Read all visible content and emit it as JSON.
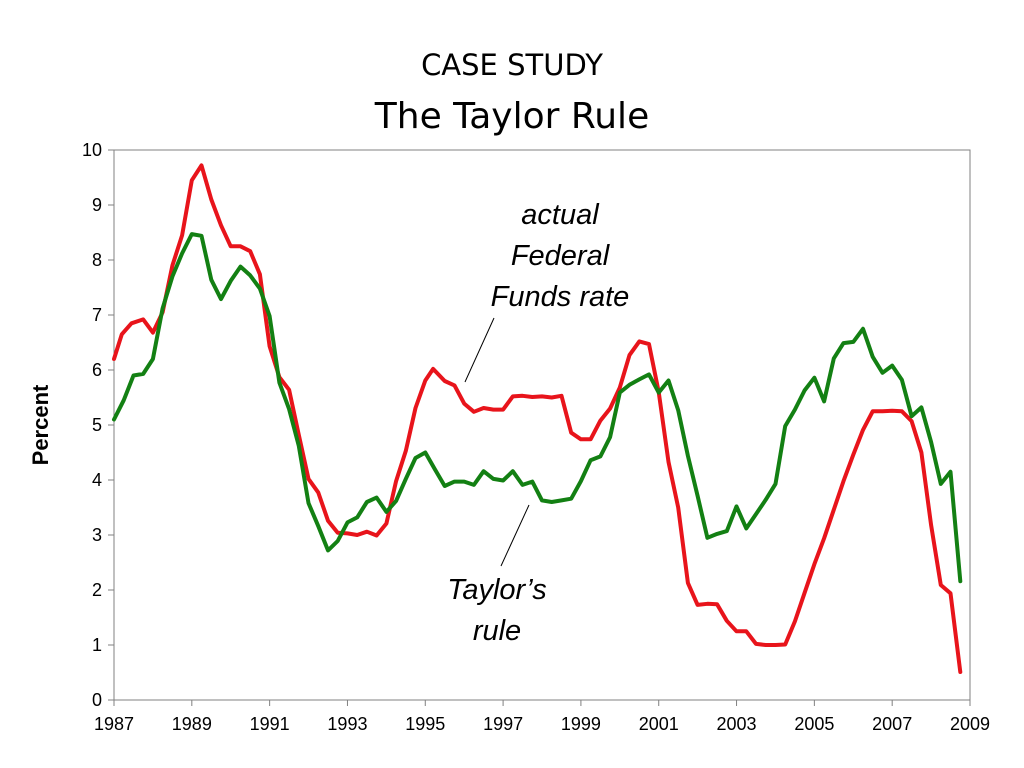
{
  "slide": {
    "title_line1": "CASE STUDY",
    "title_line2": "The Taylor Rule"
  },
  "chart_data": {
    "type": "line",
    "ylabel": "Percent",
    "xlabel": "",
    "xlim": [
      1987,
      2009
    ],
    "ylim": [
      0,
      10
    ],
    "x_ticks": [
      "1987",
      "1989",
      "1991",
      "1993",
      "1995",
      "1997",
      "1999",
      "2001",
      "2003",
      "2005",
      "2007",
      "2009"
    ],
    "y_ticks": [
      "0",
      "1",
      "2",
      "3",
      "4",
      "5",
      "6",
      "7",
      "8",
      "9",
      "10"
    ],
    "grid": false,
    "colors": {
      "actual": "#e8141b",
      "taylor": "#138013"
    },
    "annotations": {
      "actual": [
        "actual",
        "Federal",
        "Funds rate"
      ],
      "taylor": [
        "Taylor’s",
        "rule"
      ]
    },
    "series": [
      {
        "key": "actual",
        "x": [
          1987.0,
          1987.2,
          1987.45,
          1987.75,
          1988.0,
          1988.25,
          1988.5,
          1988.75,
          1989.0,
          1989.25,
          1989.5,
          1989.75,
          1990.0,
          1990.25,
          1990.5,
          1990.75,
          1991.0,
          1991.25,
          1991.5,
          1991.75,
          1992.0,
          1992.25,
          1992.5,
          1992.75,
          1993.0,
          1993.25,
          1993.5,
          1993.75,
          1994.0,
          1994.25,
          1994.5,
          1994.75,
          1995.0,
          1995.2,
          1995.5,
          1995.75,
          1996.0,
          1996.25,
          1996.5,
          1996.75,
          1997.0,
          1997.25,
          1997.5,
          1997.75,
          1998.0,
          1998.25,
          1998.5,
          1998.75,
          1999.0,
          1999.25,
          1999.5,
          1999.75,
          2000.0,
          2000.25,
          2000.5,
          2000.75,
          2001.0,
          2001.25,
          2001.5,
          2001.75,
          2002.0,
          2002.25,
          2002.5,
          2002.75,
          2003.0,
          2003.25,
          2003.5,
          2003.75,
          2004.0,
          2004.25,
          2004.5,
          2004.75,
          2005.0,
          2005.25,
          2005.5,
          2005.75,
          2006.0,
          2006.25,
          2006.5,
          2006.75,
          2007.0,
          2007.25,
          2007.5,
          2007.75,
          2008.0,
          2008.25,
          2008.5,
          2008.75
        ],
        "y": [
          6.2,
          6.65,
          6.85,
          6.92,
          6.68,
          7.05,
          7.9,
          8.45,
          9.45,
          9.72,
          9.1,
          8.63,
          8.25,
          8.25,
          8.16,
          7.74,
          6.43,
          5.87,
          5.64,
          4.82,
          4.02,
          3.77,
          3.26,
          3.04,
          3.03,
          3.0,
          3.06,
          2.99,
          3.21,
          3.98,
          4.53,
          5.31,
          5.81,
          6.02,
          5.8,
          5.72,
          5.39,
          5.24,
          5.31,
          5.28,
          5.28,
          5.52,
          5.53,
          5.51,
          5.52,
          5.5,
          5.53,
          4.86,
          4.74,
          4.74,
          5.08,
          5.3,
          5.68,
          6.27,
          6.52,
          6.47,
          5.6,
          4.33,
          3.5,
          2.13,
          1.73,
          1.75,
          1.74,
          1.44,
          1.25,
          1.25,
          1.02,
          1.0,
          1.0,
          1.01,
          1.43,
          1.95,
          2.47,
          2.94,
          3.46,
          3.98,
          4.46,
          4.91,
          5.25,
          5.25,
          5.26,
          5.25,
          5.07,
          4.5,
          3.18,
          2.09,
          1.94,
          0.51
        ]
      },
      {
        "key": "taylor",
        "x": [
          1987.0,
          1987.25,
          1987.5,
          1987.75,
          1988.0,
          1988.25,
          1988.5,
          1988.75,
          1989.0,
          1989.25,
          1989.5,
          1989.75,
          1990.0,
          1990.25,
          1990.5,
          1990.75,
          1991.0,
          1991.25,
          1991.5,
          1991.75,
          1992.0,
          1992.25,
          1992.5,
          1992.75,
          1993.0,
          1993.25,
          1993.5,
          1993.75,
          1994.0,
          1994.25,
          1994.5,
          1994.75,
          1995.0,
          1995.25,
          1995.5,
          1995.75,
          1996.0,
          1996.25,
          1996.5,
          1996.75,
          1997.0,
          1997.25,
          1997.5,
          1997.75,
          1998.0,
          1998.25,
          1998.5,
          1998.75,
          1999.0,
          1999.25,
          1999.5,
          1999.75,
          2000.0,
          2000.25,
          2000.5,
          2000.75,
          2001.0,
          2001.25,
          2001.5,
          2001.75,
          2002.0,
          2002.25,
          2002.5,
          2002.75,
          2003.0,
          2003.25,
          2003.5,
          2003.75,
          2004.0,
          2004.25,
          2004.5,
          2004.75,
          2005.0,
          2005.25,
          2005.5,
          2005.75,
          2006.0,
          2006.25,
          2006.5,
          2006.75,
          2007.0,
          2007.25,
          2007.5,
          2007.75,
          2008.0,
          2008.25,
          2008.5,
          2008.75
        ],
        "y": [
          5.1,
          5.45,
          5.9,
          5.93,
          6.2,
          7.12,
          7.7,
          8.12,
          8.47,
          8.44,
          7.64,
          7.29,
          7.62,
          7.88,
          7.72,
          7.48,
          6.98,
          5.77,
          5.29,
          4.62,
          3.58,
          3.16,
          2.72,
          2.89,
          3.23,
          3.32,
          3.6,
          3.68,
          3.42,
          3.62,
          4.02,
          4.4,
          4.5,
          4.19,
          3.89,
          3.97,
          3.97,
          3.91,
          4.16,
          4.02,
          3.99,
          4.16,
          3.91,
          3.97,
          3.63,
          3.6,
          3.63,
          3.66,
          3.98,
          4.36,
          4.43,
          4.78,
          5.59,
          5.73,
          5.83,
          5.92,
          5.59,
          5.81,
          5.27,
          4.44,
          3.71,
          2.95,
          3.02,
          3.07,
          3.52,
          3.12,
          3.38,
          3.64,
          3.93,
          4.98,
          5.28,
          5.63,
          5.86,
          5.43,
          6.21,
          6.49,
          6.51,
          6.75,
          6.24,
          5.95,
          6.08,
          5.82,
          5.16,
          5.32,
          4.69,
          3.93,
          4.15,
          2.16
        ]
      }
    ]
  }
}
